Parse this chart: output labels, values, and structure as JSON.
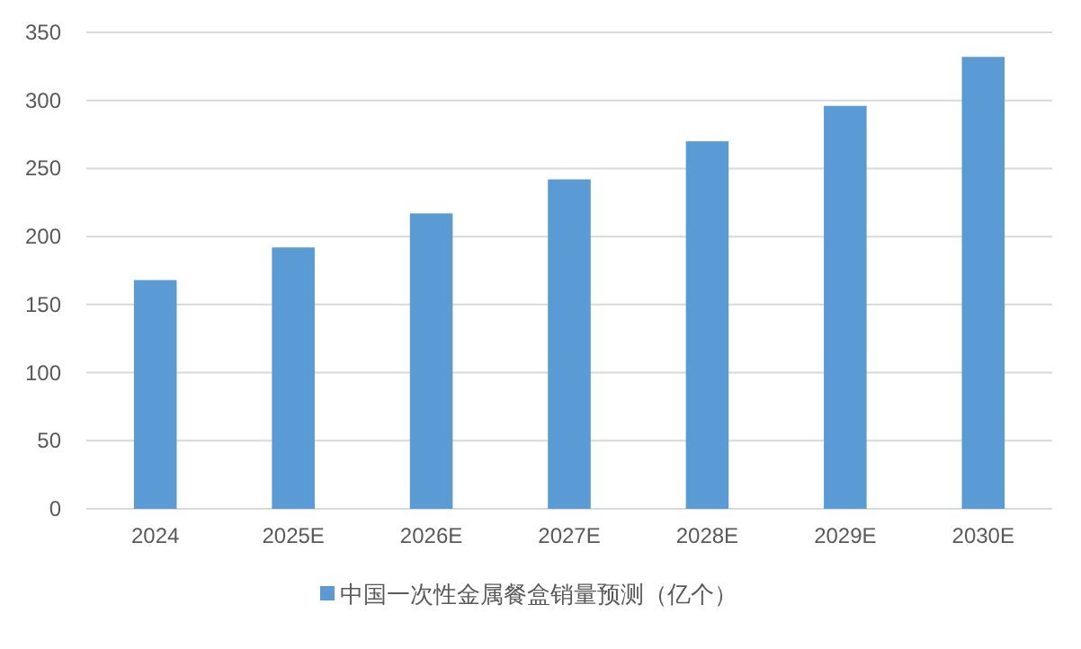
{
  "chart_data": {
    "type": "bar",
    "categories": [
      "2024",
      "2025E",
      "2026E",
      "2027E",
      "2028E",
      "2029E",
      "2030E"
    ],
    "series": [
      {
        "name": "中国一次性金属餐盒销量预测（亿个）",
        "color": "#5b9bd5",
        "values": [
          168,
          192,
          217,
          242,
          270,
          296,
          332
        ]
      }
    ],
    "ylim": [
      0,
      350
    ],
    "yticks": [
      0,
      50,
      100,
      150,
      200,
      250,
      300,
      350
    ],
    "grid": "y",
    "legend": "bottom"
  }
}
